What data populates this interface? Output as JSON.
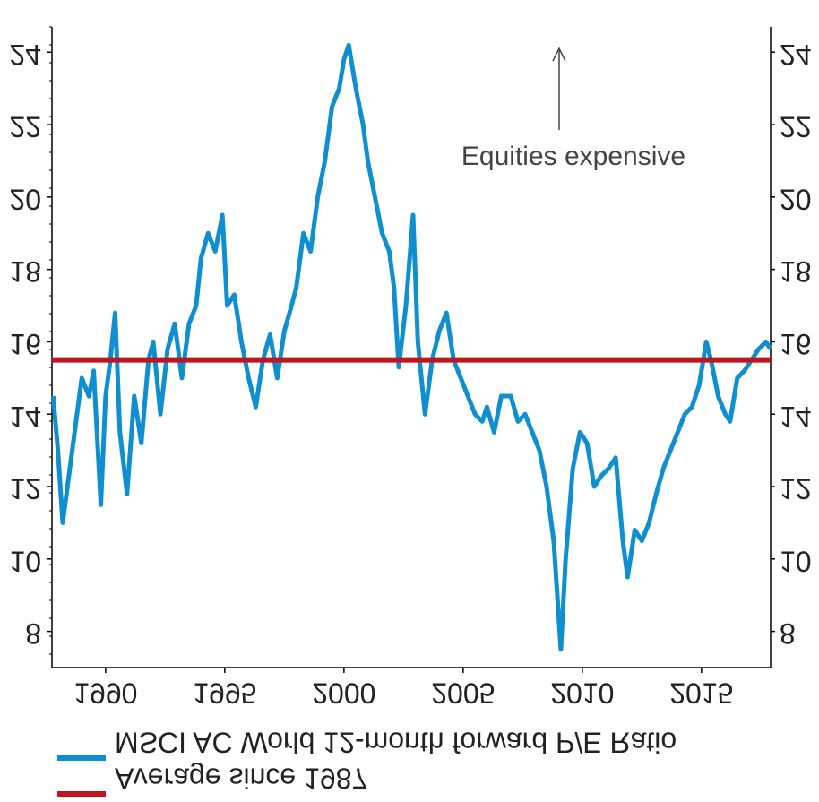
{
  "chart_data": {
    "type": "line",
    "annotation": "Equities expensive",
    "xlim": [
      1987.75,
      2017.9
    ],
    "xticks": [
      1990,
      1995,
      2000,
      2005,
      2010,
      2015
    ],
    "ylim": [
      7,
      24.7
    ],
    "yticks": [
      8,
      10,
      12,
      14,
      16,
      18,
      20,
      22,
      24
    ],
    "x": [
      1987.8,
      1988,
      1988.2,
      1988.5,
      1988.8,
      1989,
      1989.3,
      1989.5,
      1989.8,
      1990,
      1990.2,
      1990.4,
      1990.6,
      1990.9,
      1991.2,
      1991.5,
      1991.8,
      1992,
      1992.3,
      1992.6,
      1992.9,
      1993.2,
      1993.5,
      1993.8,
      1994,
      1994.3,
      1994.6,
      1994.9,
      1995.1,
      1995.4,
      1995.7,
      1996,
      1996.3,
      1996.6,
      1996.9,
      1997.2,
      1997.5,
      1997.8,
      1998,
      1998.3,
      1998.6,
      1998.9,
      1999.2,
      1999.5,
      1999.8,
      2000,
      2000.2,
      2000.5,
      2000.8,
      2001,
      2001.3,
      2001.6,
      2001.9,
      2002.1,
      2002.3,
      2002.6,
      2002.9,
      2003.1,
      2003.4,
      2003.7,
      2004,
      2004.3,
      2004.6,
      2004.9,
      2005.2,
      2005.5,
      2005.8,
      2006,
      2006.3,
      2006.6,
      2007,
      2007.3,
      2007.6,
      2007.9,
      2008.2,
      2008.5,
      2008.8,
      2009,
      2009.1,
      2009.3,
      2009.6,
      2009.9,
      2010.2,
      2010.5,
      2010.8,
      2011.1,
      2011.4,
      2011.7,
      2011.9,
      2012.2,
      2012.5,
      2012.8,
      2013.1,
      2013.4,
      2013.7,
      2014,
      2014.3,
      2014.6,
      2014.9,
      2015.2,
      2015.4,
      2015.7,
      2016,
      2016.2,
      2016.5,
      2016.8,
      2017.1,
      2017.4,
      2017.7,
      2017.9
    ],
    "series": [
      {
        "name": "MSCI AC World 12-month forward P/E Ratio",
        "color": "#0f8fcf",
        "values": [
          14.5,
          13,
          11,
          12.5,
          14,
          15,
          14.5,
          15.2,
          11.5,
          14.5,
          15.5,
          16.8,
          13.5,
          11.8,
          14.5,
          13.2,
          15.5,
          16,
          14,
          15.8,
          16.5,
          15,
          16.5,
          17,
          18.3,
          19,
          18.5,
          19.5,
          17,
          17.3,
          16,
          15,
          14.2,
          15.5,
          16.2,
          15,
          16.3,
          17,
          17.5,
          19,
          18.5,
          20,
          21,
          22.5,
          23,
          23.8,
          24.2,
          23,
          22,
          21,
          20,
          19,
          18.5,
          17.5,
          15.3,
          17,
          19.5,
          16,
          14,
          15.5,
          16.3,
          16.8,
          15.5,
          15,
          14.5,
          14,
          13.8,
          14.2,
          13.5,
          14.5,
          14.5,
          13.8,
          14,
          13.5,
          13,
          12,
          10.5,
          8.5,
          7.5,
          10,
          12.5,
          13.5,
          13.2,
          12,
          12.3,
          12.5,
          12.8,
          10.5,
          9.5,
          10.8,
          10.5,
          11,
          11.8,
          12.5,
          13,
          13.5,
          14,
          14.2,
          14.8,
          16,
          15.5,
          14.5,
          14,
          13.8,
          15,
          15.2,
          15.5,
          15.8,
          16,
          15.8
        ]
      }
    ],
    "reference_line": {
      "name": "Average since 1987",
      "color": "#c0141e",
      "value": 15.5
    }
  }
}
